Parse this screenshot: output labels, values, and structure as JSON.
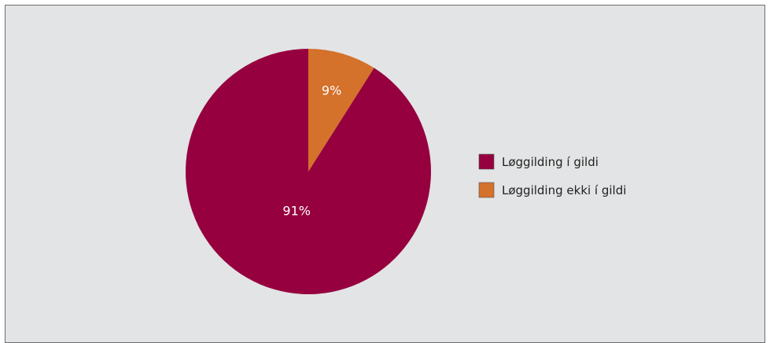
{
  "chart_data": {
    "type": "pie",
    "categories": [
      "Løggilding í gildi",
      "Løggilding ekki í gildi"
    ],
    "values": [
      91,
      9
    ],
    "data_labels": [
      "91%",
      "9%"
    ],
    "colors": [
      "#96003f",
      "#d4712b"
    ],
    "legend_position": "right"
  }
}
